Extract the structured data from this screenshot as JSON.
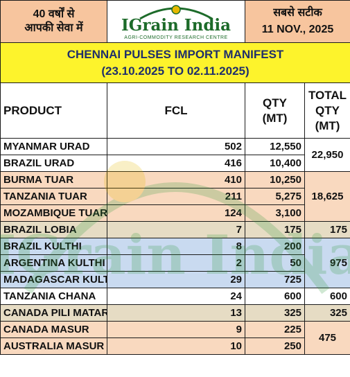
{
  "header": {
    "left_text_1": "40 वर्षों से",
    "left_text_2": "आपकी सेवा में",
    "logo_name": "IGrain India",
    "logo_tagline": "AGRI-COMMODITY RESEARCH CENTRE",
    "right_text": "सबसे सटीक",
    "date": "11 NOV., 2025"
  },
  "title": {
    "line1": "CHENNAI PULSES IMPORT MANIFEST",
    "line2": "(23.10.2025 TO 02.11.2025)"
  },
  "columns": {
    "product": "PRODUCT",
    "fcl": "FCL",
    "qty_1": "QTY",
    "qty_2": "(MT)",
    "total_1": "TOTAL",
    "total_2": "QTY",
    "total_3": "(MT)"
  },
  "rows": [
    {
      "product": "MYANMAR URAD",
      "fcl": "502",
      "qty": "12,550"
    },
    {
      "product": "BRAZIL URAD",
      "fcl": "416",
      "qty": "10,400"
    },
    {
      "product": "BURMA TUAR",
      "fcl": "410",
      "qty": "10,250"
    },
    {
      "product": "TANZANIA TUAR",
      "fcl": "211",
      "qty": "5,275"
    },
    {
      "product": "MOZAMBIQUE TUAR",
      "fcl": "124",
      "qty": "3,100"
    },
    {
      "product": "BRAZIL LOBIA",
      "fcl": "7",
      "qty": "175"
    },
    {
      "product": "BRAZIL KULTHI",
      "fcl": "8",
      "qty": "200"
    },
    {
      "product": "ARGENTINA KULTHI",
      "fcl": "2",
      "qty": "50"
    },
    {
      "product": "MADAGASCAR KULTHI",
      "fcl": "29",
      "qty": "725"
    },
    {
      "product": "TANZANIA CHANA",
      "fcl": "24",
      "qty": "600"
    },
    {
      "product": "CANADA PILI MATAR",
      "fcl": "13",
      "qty": "325"
    },
    {
      "product": "CANADA MASUR",
      "fcl": "9",
      "qty": "225"
    },
    {
      "product": "AUSTRALIA MASUR",
      "fcl": "10",
      "qty": "250"
    }
  ],
  "totals": {
    "urad": "22,950",
    "tuar": "18,625",
    "lobia": "175",
    "kulthi": "975",
    "chana": "600",
    "pili_matar": "325",
    "masur": "475"
  },
  "watermark_text": "IGrain India",
  "colors": {
    "header_orange": "#f7c59e",
    "title_yellow": "#fdf32c",
    "row_light_orange": "#f9d9bf",
    "row_tan": "#e6dcc4",
    "row_blue": "#c9daf0",
    "logo_green": "#1d6b2a",
    "title_navy": "#1f2f6b"
  }
}
